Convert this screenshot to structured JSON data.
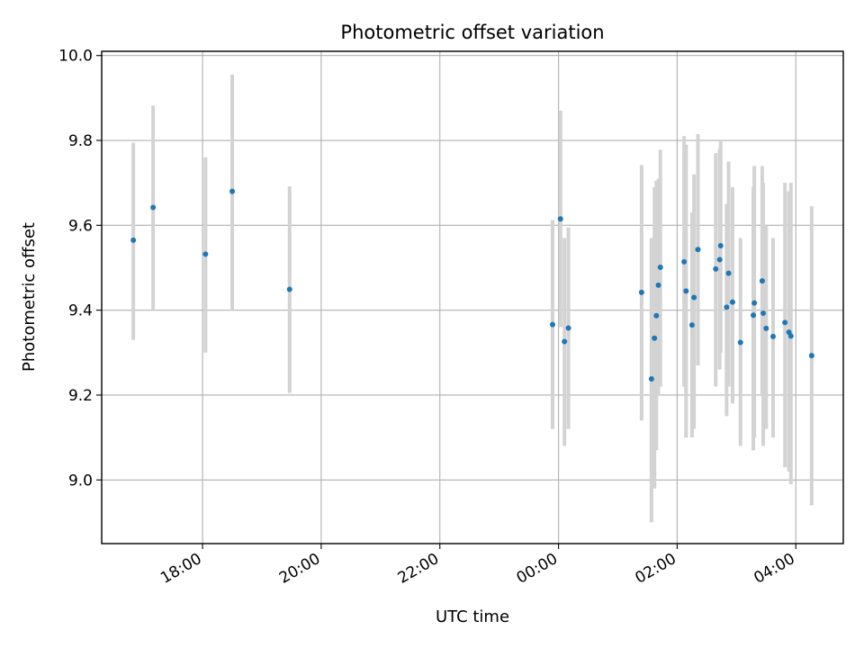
{
  "chart_data": {
    "type": "scatter",
    "title": "Photometric offset variation",
    "xlabel": "UTC time",
    "ylabel": "Photometric offset",
    "x_axis_type": "time",
    "x_ticks": [
      "18:00",
      "20:00",
      "22:00",
      "00:00",
      "02:00",
      "04:00"
    ],
    "y_ticks": [
      "9.0",
      "9.2",
      "9.4",
      "9.6",
      "9.8",
      "10.0"
    ],
    "xlim": [
      "16:18",
      "04:48"
    ],
    "ylim": [
      8.85,
      10.01
    ],
    "grid": true,
    "marker_color": "#1f77b4",
    "errorbar_color": "#d3d3d3",
    "series": [
      {
        "points": [
          {
            "time": "16:50",
            "y": 9.565,
            "ylo": 9.33,
            "yhi": 9.795
          },
          {
            "time": "17:10",
            "y": 9.642,
            "ylo": 9.4,
            "yhi": 9.882
          },
          {
            "time": "18:03",
            "y": 9.532,
            "ylo": 9.3,
            "yhi": 9.76
          },
          {
            "time": "18:30",
            "y": 9.68,
            "ylo": 9.4,
            "yhi": 9.955
          },
          {
            "time": "19:28",
            "y": 9.449,
            "ylo": 9.205,
            "yhi": 9.692
          },
          {
            "time": "23:54",
            "y": 9.366,
            "ylo": 9.12,
            "yhi": 9.612
          },
          {
            "time": "00:02",
            "y": 9.615,
            "ylo": 9.36,
            "yhi": 9.87
          },
          {
            "time": "00:06",
            "y": 9.326,
            "ylo": 9.08,
            "yhi": 9.57
          },
          {
            "time": "00:10",
            "y": 9.358,
            "ylo": 9.12,
            "yhi": 9.595
          },
          {
            "time": "01:24",
            "y": 9.442,
            "ylo": 9.14,
            "yhi": 9.742
          },
          {
            "time": "01:34",
            "y": 9.238,
            "ylo": 8.9,
            "yhi": 9.57
          },
          {
            "time": "01:37",
            "y": 9.334,
            "ylo": 8.98,
            "yhi": 9.69
          },
          {
            "time": "01:39",
            "y": 9.387,
            "ylo": 9.07,
            "yhi": 9.705
          },
          {
            "time": "01:41",
            "y": 9.459,
            "ylo": 9.2,
            "yhi": 9.71
          },
          {
            "time": "01:43",
            "y": 9.501,
            "ylo": 9.22,
            "yhi": 9.778
          },
          {
            "time": "02:07",
            "y": 9.514,
            "ylo": 9.22,
            "yhi": 9.81
          },
          {
            "time": "02:09",
            "y": 9.445,
            "ylo": 9.1,
            "yhi": 9.79
          },
          {
            "time": "02:15",
            "y": 9.365,
            "ylo": 9.1,
            "yhi": 9.63
          },
          {
            "time": "02:17",
            "y": 9.43,
            "ylo": 9.12,
            "yhi": 9.72
          },
          {
            "time": "02:21",
            "y": 9.543,
            "ylo": 9.27,
            "yhi": 9.815
          },
          {
            "time": "02:39",
            "y": 9.497,
            "ylo": 9.22,
            "yhi": 9.77
          },
          {
            "time": "02:43",
            "y": 9.519,
            "ylo": 9.26,
            "yhi": 9.78
          },
          {
            "time": "02:44",
            "y": 9.552,
            "ylo": 9.3,
            "yhi": 9.8
          },
          {
            "time": "02:50",
            "y": 9.407,
            "ylo": 9.15,
            "yhi": 9.65
          },
          {
            "time": "02:52",
            "y": 9.487,
            "ylo": 9.22,
            "yhi": 9.75
          },
          {
            "time": "02:56",
            "y": 9.419,
            "ylo": 9.18,
            "yhi": 9.69
          },
          {
            "time": "03:04",
            "y": 9.324,
            "ylo": 9.08,
            "yhi": 9.57
          },
          {
            "time": "03:17",
            "y": 9.388,
            "ylo": 9.07,
            "yhi": 9.69
          },
          {
            "time": "03:18",
            "y": 9.417,
            "ylo": 9.1,
            "yhi": 9.74
          },
          {
            "time": "03:26",
            "y": 9.469,
            "ylo": 9.2,
            "yhi": 9.74
          },
          {
            "time": "03:27",
            "y": 9.393,
            "ylo": 9.08,
            "yhi": 9.7
          },
          {
            "time": "03:30",
            "y": 9.357,
            "ylo": 9.12,
            "yhi": 9.6
          },
          {
            "time": "03:37",
            "y": 9.338,
            "ylo": 9.1,
            "yhi": 9.57
          },
          {
            "time": "03:49",
            "y": 9.371,
            "ylo": 9.03,
            "yhi": 9.7
          },
          {
            "time": "03:53",
            "y": 9.348,
            "ylo": 9.02,
            "yhi": 9.68
          },
          {
            "time": "03:55",
            "y": 9.339,
            "ylo": 8.99,
            "yhi": 9.7
          },
          {
            "time": "04:16",
            "y": 9.293,
            "ylo": 8.94,
            "yhi": 9.645
          }
        ]
      }
    ]
  }
}
